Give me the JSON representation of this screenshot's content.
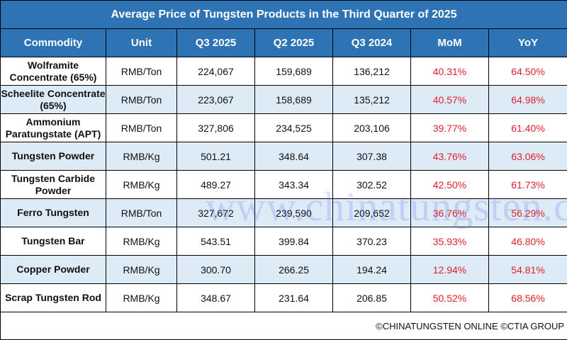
{
  "title": "Average Price of Tungsten Products in the Third Quarter of 2025",
  "columns": [
    "Commodity",
    "Unit",
    "Q3 2025",
    "Q2 2025",
    "Q3 2024",
    "MoM",
    "YoY"
  ],
  "rows": [
    [
      "Wolframite Concentrate (65%)",
      "RMB/Ton",
      "224,067",
      "159,689",
      "136,212",
      "40.31%",
      "64.50%"
    ],
    [
      "Scheelite Concentrate (65%)",
      "RMB/Ton",
      "223,067",
      "158,689",
      "135,212",
      "40.57%",
      "64.98%"
    ],
    [
      "Ammonium Paratungstate (APT)",
      "RMB/Ton",
      "327,806",
      "234,525",
      "203,106",
      "39.77%",
      "61.40%"
    ],
    [
      "Tungsten Powder",
      "RMB/Kg",
      "501.21",
      "348.64",
      "307.38",
      "43.76%",
      "63.06%"
    ],
    [
      "Tungsten Carbide Powder",
      "RMB/Kg",
      "489.27",
      "343.34",
      "302.52",
      "42.50%",
      "61.73%"
    ],
    [
      "Ferro Tungsten",
      "RMB/Ton",
      "327,672",
      "239,590",
      "209,652",
      "36.76%",
      "56.29%"
    ],
    [
      "Tungsten Bar",
      "RMB/Kg",
      "543.51",
      "399.84",
      "370.23",
      "35.93%",
      "46.80%"
    ],
    [
      "Copper Powder",
      "RMB/Kg",
      "300.70",
      "266.25",
      "194.24",
      "12.94%",
      "54.81%"
    ],
    [
      "Scrap Tungsten Rod",
      "RMB/Kg",
      "348.67",
      "231.64",
      "206.85",
      "50.52%",
      "68.56%"
    ]
  ],
  "footer": "©CHINATUNGSTEN ONLINE ©CTIA GROUP",
  "watermark": "www.chinatungsten.com",
  "colors": {
    "header_bg": "#2e74b5",
    "alt_row": "#ddebf7",
    "change_text": "#e0202a"
  }
}
